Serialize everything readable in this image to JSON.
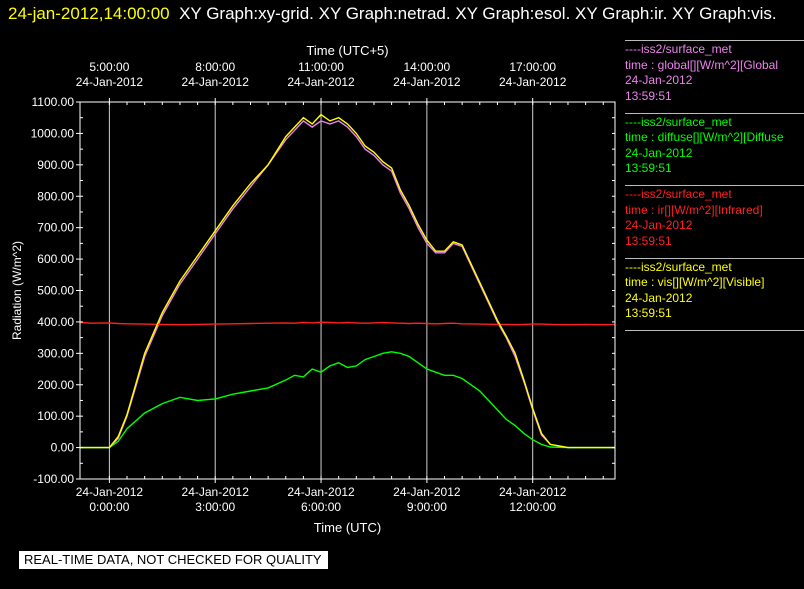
{
  "header": {
    "timestamp": "24-jan-2012,14:00:00",
    "graphs": "XY Graph:xy-grid.  XY Graph:netrad.  XY Graph:esol.  XY Graph:ir.  XY Graph:vis."
  },
  "legend": [
    {
      "station": "----iss2/surface_met",
      "var": "time : global[][W/m^2][Global",
      "date": "24-Jan-2012",
      "time": "13:59:51",
      "color": "#ee82ee"
    },
    {
      "station": "----iss2/surface_met",
      "var": "time : diffuse[][W/m^2][Diffuse",
      "date": "24-Jan-2012",
      "time": "13:59:51",
      "color": "#00ff00"
    },
    {
      "station": "----iss2/surface_met",
      "var": "time : ir[][W/m^2][Infrared]",
      "date": "24-Jan-2012",
      "time": "13:59:51",
      "color": "#ff2020"
    },
    {
      "station": "----iss2/surface_met",
      "var": "time : vis[][W/m^2][Visible]",
      "date": "24-Jan-2012",
      "time": "13:59:51",
      "color": "#ffff00"
    }
  ],
  "notice": "REAL-TIME DATA, NOT CHECKED FOR QUALITY",
  "chart_data": {
    "type": "line",
    "xlabel": "Time (UTC)",
    "x2label": "Time (UTC+5)",
    "ylabel": "Radiation (W/m^2)",
    "ylim": [
      -100,
      1100
    ],
    "xlim_hours": [
      -0.833,
      14.333
    ],
    "grid": "vertical",
    "yticks": [
      "-100.00",
      "0.00",
      "100.00",
      "200.00",
      "300.00",
      "400.00",
      "500.00",
      "600.00",
      "700.00",
      "800.00",
      "900.00",
      "1000.00",
      "1100.00"
    ],
    "xticks": [
      {
        "hour": 0,
        "date": "24-Jan-2012",
        "time": "0:00:00"
      },
      {
        "hour": 3,
        "date": "24-Jan-2012",
        "time": "3:00:00"
      },
      {
        "hour": 6,
        "date": "24-Jan-2012",
        "time": "6:00:00"
      },
      {
        "hour": 9,
        "date": "24-Jan-2012",
        "time": "9:00:00"
      },
      {
        "hour": 12,
        "date": "24-Jan-2012",
        "time": "12:00:00"
      }
    ],
    "x2ticks": [
      {
        "hour": 0,
        "date": "24-Jan-2012",
        "time": "5:00:00"
      },
      {
        "hour": 3,
        "date": "24-Jan-2012",
        "time": "8:00:00"
      },
      {
        "hour": 6,
        "date": "24-Jan-2012",
        "time": "11:00:00"
      },
      {
        "hour": 9,
        "date": "24-Jan-2012",
        "time": "14:00:00"
      },
      {
        "hour": 12,
        "date": "24-Jan-2012",
        "time": "17:00:00"
      }
    ],
    "x": [
      -0.833,
      -0.5,
      0,
      0.25,
      0.5,
      1,
      1.5,
      2,
      2.5,
      3,
      3.5,
      4,
      4.5,
      5,
      5.25,
      5.5,
      5.75,
      6,
      6.25,
      6.5,
      6.75,
      7,
      7.25,
      7.5,
      7.75,
      8,
      8.25,
      8.5,
      8.75,
      9,
      9.25,
      9.5,
      9.75,
      10,
      10.5,
      11,
      11.25,
      11.5,
      11.75,
      12,
      12.25,
      12.5,
      13,
      13.5,
      14,
      14.333
    ],
    "series": [
      {
        "name": "global",
        "color": "#ee82ee",
        "values": [
          0,
          0,
          0,
          30,
          100,
          290,
          420,
          520,
          600,
          680,
          760,
          830,
          900,
          980,
          1010,
          1040,
          1020,
          1040,
          1030,
          1040,
          1020,
          990,
          950,
          930,
          900,
          880,
          810,
          760,
          700,
          650,
          620,
          620,
          650,
          640,
          520,
          400,
          350,
          290,
          210,
          120,
          40,
          10,
          0,
          0,
          0,
          0
        ]
      },
      {
        "name": "diffuse",
        "color": "#00ff00",
        "values": [
          0,
          0,
          0,
          20,
          60,
          110,
          140,
          160,
          150,
          155,
          170,
          180,
          190,
          215,
          230,
          225,
          250,
          240,
          260,
          270,
          255,
          260,
          280,
          290,
          300,
          305,
          300,
          290,
          270,
          250,
          240,
          230,
          230,
          220,
          180,
          120,
          90,
          70,
          45,
          25,
          10,
          2,
          0,
          0,
          0,
          0
        ]
      },
      {
        "name": "ir",
        "color": "#ff2020",
        "values": [
          398,
          396,
          397,
          395,
          394,
          393,
          392,
          391,
          392,
          393,
          394,
          395,
          396,
          397,
          396,
          398,
          397,
          399,
          398,
          397,
          398,
          397,
          396,
          397,
          398,
          397,
          396,
          395,
          396,
          395,
          394,
          395,
          396,
          394,
          393,
          392,
          392,
          391,
          392,
          393,
          393,
          392,
          391,
          392,
          391,
          392
        ]
      },
      {
        "name": "vis",
        "color": "#ffff00",
        "values": [
          0,
          0,
          0,
          35,
          105,
          300,
          430,
          530,
          610,
          690,
          770,
          840,
          900,
          990,
          1020,
          1050,
          1030,
          1060,
          1040,
          1050,
          1030,
          1000,
          960,
          940,
          910,
          890,
          820,
          770,
          710,
          660,
          625,
          625,
          655,
          645,
          525,
          405,
          355,
          300,
          215,
          125,
          45,
          10,
          0,
          0,
          0,
          0
        ]
      }
    ]
  }
}
